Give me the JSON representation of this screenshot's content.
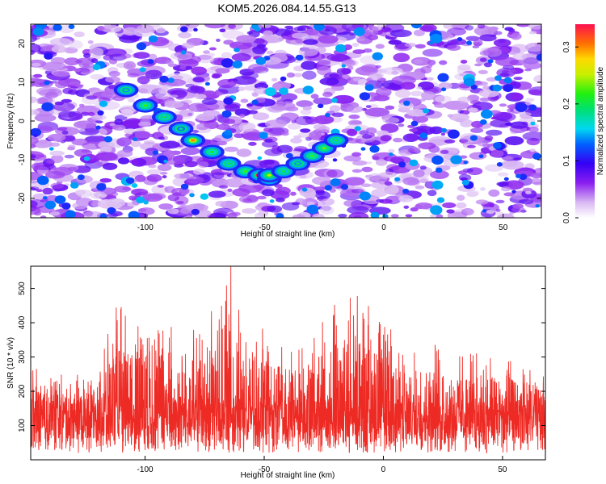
{
  "title": "KOM5.2026.084.14.55.G13",
  "chart_data": [
    {
      "type": "heatmap",
      "xlabel": "Height of straight line (km)",
      "ylabel": "Frequency (Hz)",
      "xlim": [
        -148,
        66
      ],
      "ylim": [
        -25,
        25
      ],
      "xticks": [
        -100,
        -50,
        0,
        50
      ],
      "xtick_labels": [
        "-100",
        "-50",
        "0",
        "50"
      ],
      "yticks": [
        -20,
        -10,
        0,
        10,
        20
      ],
      "ytick_labels": [
        "-20",
        "-10",
        "0",
        "10",
        "20"
      ],
      "colorbar": {
        "label": "Normalized spectral amplitude",
        "range": [
          0.0,
          0.34
        ],
        "ticks": [
          0.0,
          0.1,
          0.2,
          0.3
        ],
        "tick_labels": [
          "0.0",
          "0.1",
          "0.2",
          "0.3"
        ]
      },
      "features": [
        {
          "name": "descending-trace",
          "x": [
            -108,
            -100,
            -92,
            -85,
            -80,
            -72,
            -65,
            -58,
            -52,
            -48
          ],
          "y": [
            8,
            4,
            1,
            -2,
            -5,
            -8,
            -11,
            -13,
            -14,
            -15
          ],
          "amplitude": [
            0.14,
            0.17,
            0.15,
            0.13,
            0.25,
            0.16,
            0.15,
            0.17,
            0.34,
            0.2
          ]
        },
        {
          "name": "ascending-trace",
          "x": [
            -48,
            -42,
            -36,
            -30,
            -25,
            -20
          ],
          "y": [
            -14,
            -13,
            -11,
            -9,
            -7,
            -5
          ],
          "amplitude": [
            0.2,
            0.15,
            0.14,
            0.17,
            0.18,
            0.15
          ]
        }
      ]
    },
    {
      "type": "line",
      "xlabel": "Height of straight line (km)",
      "ylabel": "SNR (10 * v/v)",
      "xlim": [
        -148,
        68
      ],
      "ylim": [
        0,
        565
      ],
      "xticks": [
        -100,
        -50,
        0,
        50
      ],
      "xtick_labels": [
        "-100",
        "-50",
        "0",
        "50"
      ],
      "yticks": [
        100,
        200,
        300,
        400,
        500
      ],
      "ytick_labels": [
        "100",
        "200",
        "300",
        "400",
        "500"
      ],
      "series": [
        {
          "name": "SNR",
          "color": "#ee2a24",
          "baseline_mean": 125,
          "envelope_x": [
            -148,
            -130,
            -120,
            -110,
            -105,
            -95,
            -85,
            -75,
            -65,
            -60,
            -50,
            -40,
            -30,
            -20,
            -10,
            0,
            10,
            20,
            30,
            40,
            50,
            60,
            68
          ],
          "envelope_max": [
            280,
            240,
            320,
            480,
            460,
            420,
            390,
            400,
            560,
            420,
            380,
            340,
            370,
            500,
            480,
            420,
            300,
            350,
            300,
            320,
            300,
            280,
            250
          ],
          "peak_x": -64,
          "peak_y": 565
        }
      ]
    }
  ]
}
